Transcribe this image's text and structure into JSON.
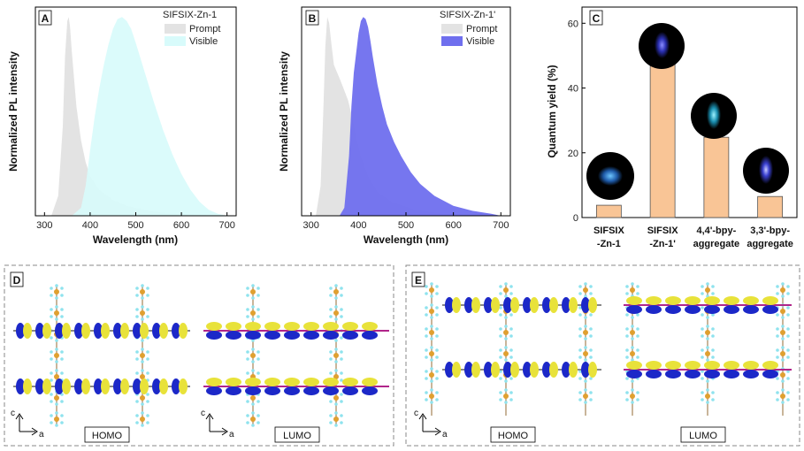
{
  "colors": {
    "prompt": "#e3e3e3",
    "visible_a": "#d8fbfb",
    "visible_b": "#6f6fee",
    "bar": "#f9c596",
    "bar_stroke": "#555555",
    "homo_yellow": "#e8e23a",
    "lumo_blue": "#1c28c8",
    "linker_magenta": "#b0258a",
    "si_orange": "#e0a030",
    "f_cyan": "#8fe3ee"
  },
  "panels": {
    "a": {
      "label": "A"
    },
    "b": {
      "label": "B"
    },
    "c": {
      "label": "C"
    },
    "d": {
      "label": "D",
      "homo": "HOMO",
      "lumo": "LUMO",
      "axis_c": "c",
      "axis_a": "a"
    },
    "e": {
      "label": "E",
      "homo": "HOMO",
      "lumo": "LUMO",
      "axis_c": "c",
      "axis_a": "a"
    }
  },
  "chart_data": [
    {
      "panel": "A",
      "type": "area",
      "title": "",
      "xlabel": "Wavelength (nm)",
      "ylabel": "Normalized PL intensity",
      "xlim": [
        280,
        720
      ],
      "ylim": [
        0,
        1.05
      ],
      "xticks": [
        300,
        400,
        500,
        600,
        700
      ],
      "legend_title": "SIFSIX-Zn-1",
      "series": [
        {
          "name": "Prompt",
          "color_key": "prompt",
          "x": [
            315,
            330,
            340,
            345,
            350,
            353,
            356,
            360,
            370,
            380,
            390,
            400,
            420,
            450,
            480,
            520,
            560,
            600,
            650,
            700
          ],
          "y": [
            0,
            0.1,
            0.45,
            0.8,
            0.98,
            1.0,
            0.95,
            0.82,
            0.55,
            0.38,
            0.27,
            0.2,
            0.13,
            0.08,
            0.05,
            0.03,
            0.015,
            0.008,
            0.003,
            0
          ]
        },
        {
          "name": "Visible",
          "color_key": "visible_a",
          "x": [
            360,
            380,
            390,
            400,
            410,
            420,
            430,
            440,
            450,
            460,
            470,
            480,
            490,
            500,
            520,
            540,
            560,
            580,
            600,
            620,
            640,
            660,
            680,
            700
          ],
          "y": [
            0,
            0.04,
            0.15,
            0.33,
            0.5,
            0.64,
            0.76,
            0.86,
            0.94,
            0.99,
            1.0,
            0.98,
            0.94,
            0.87,
            0.72,
            0.57,
            0.43,
            0.31,
            0.21,
            0.13,
            0.07,
            0.03,
            0.01,
            0
          ]
        }
      ]
    },
    {
      "panel": "B",
      "type": "area",
      "title": "",
      "xlabel": "Wavelength (nm)",
      "ylabel": "Normalized PL intensity",
      "xlim": [
        280,
        720
      ],
      "ylim": [
        0,
        1.05
      ],
      "xticks": [
        300,
        400,
        500,
        600,
        700
      ],
      "legend_title": "SIFSIX-Zn-1'",
      "series": [
        {
          "name": "Prompt",
          "color_key": "prompt",
          "x": [
            310,
            320,
            326,
            330,
            334,
            338,
            342,
            348,
            355,
            362,
            370,
            378,
            386,
            395,
            405,
            420,
            440,
            470,
            520,
            580,
            650,
            700
          ],
          "y": [
            0,
            0.15,
            0.55,
            0.85,
            1.0,
            0.97,
            0.88,
            0.76,
            0.72,
            0.68,
            0.63,
            0.58,
            0.5,
            0.4,
            0.3,
            0.2,
            0.12,
            0.07,
            0.03,
            0.01,
            0.003,
            0
          ]
        },
        {
          "name": "Visible",
          "color_key": "visible_b",
          "x": [
            360,
            370,
            380,
            385,
            390,
            395,
            400,
            405,
            410,
            415,
            420,
            425,
            430,
            440,
            450,
            460,
            475,
            490,
            510,
            530,
            560,
            600,
            640,
            680,
            700
          ],
          "y": [
            0,
            0.04,
            0.3,
            0.55,
            0.72,
            0.82,
            0.92,
            0.98,
            1.0,
            0.99,
            0.95,
            0.88,
            0.8,
            0.66,
            0.55,
            0.46,
            0.37,
            0.3,
            0.22,
            0.16,
            0.1,
            0.05,
            0.025,
            0.01,
            0
          ]
        }
      ]
    },
    {
      "panel": "C",
      "type": "bar",
      "title": "",
      "xlabel": "",
      "ylabel": "Quantum yield (%)",
      "ylim": [
        0,
        65
      ],
      "yticks": [
        0,
        20,
        40,
        60
      ],
      "categories": [
        [
          "SIFSIX",
          "-Zn-1"
        ],
        [
          "SIFSIX",
          "-Zn-1'"
        ],
        [
          "4,4'-bpy-",
          "aggregate"
        ],
        [
          "3,3'-bpy-",
          "aggregate"
        ]
      ],
      "values": [
        3.8,
        47.5,
        24.8,
        6.5
      ]
    }
  ]
}
